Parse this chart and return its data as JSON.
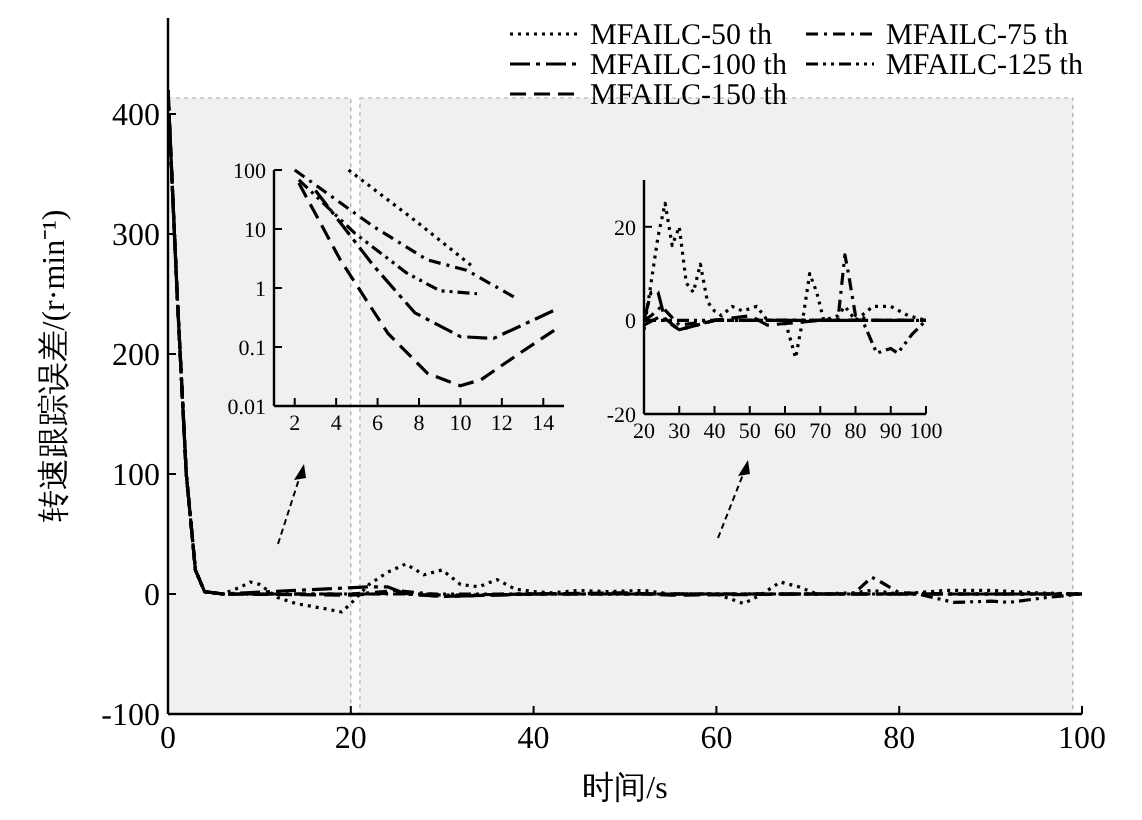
{
  "chart_data": [
    {
      "type": "line",
      "xlabel": "时间/s",
      "ylabel": "转速跟踪误差/(r·min⁻¹)",
      "xlim": [
        0,
        100
      ],
      "ylim": [
        -100,
        480
      ],
      "xticks": [
        0,
        20,
        40,
        60,
        80,
        100
      ],
      "yticks": [
        -100,
        0,
        100,
        200,
        300,
        400
      ],
      "legend": "top right",
      "grid": false,
      "bands": [
        {
          "axis": "x",
          "from": 0,
          "to": 20,
          "color": "#f0f0f0"
        },
        {
          "axis": "x",
          "from": 21,
          "to": 99,
          "color": "#f0f0f0"
        }
      ],
      "series": [
        {
          "name": "MFAILC-50 th",
          "color": "#000000",
          "line_style": "dotted",
          "x": [
            0,
            1,
            2,
            3,
            4,
            6,
            8,
            9,
            10,
            12,
            14,
            17,
            19,
            20,
            22,
            24,
            26,
            28,
            30,
            32,
            34,
            36,
            38,
            40,
            42,
            45,
            48,
            52,
            55,
            60,
            63,
            65,
            67,
            69,
            71,
            75,
            77,
            80,
            85,
            90,
            95,
            100
          ],
          "values": [
            420,
            250,
            100,
            20,
            2,
            0,
            6,
            10,
            8,
            -3,
            -8,
            -12,
            -15,
            -8,
            8,
            18,
            25,
            16,
            20,
            8,
            6,
            12,
            4,
            2,
            1,
            3,
            2,
            3,
            0,
            0,
            -8,
            0,
            10,
            6,
            0,
            1,
            3,
            0,
            3,
            3,
            1,
            0
          ]
        },
        {
          "name": "MFAILC-75 th",
          "color": "#000000",
          "line_style": "dashdot",
          "x": [
            0,
            1,
            2,
            3,
            4,
            6,
            20,
            22,
            25,
            30,
            40,
            60,
            75,
            77,
            78,
            80,
            85,
            100
          ],
          "values": [
            420,
            250,
            100,
            20,
            2,
            0,
            0,
            1,
            3,
            -1,
            0,
            0,
            0,
            14,
            10,
            1,
            0,
            0
          ]
        },
        {
          "name": "MFAILC-100 th",
          "color": "#000000",
          "line_style": "longdashdot",
          "x": [
            0,
            1,
            2,
            3,
            4,
            6,
            22,
            24,
            26,
            30,
            35,
            40,
            60,
            100
          ],
          "values": [
            420,
            250,
            100,
            20,
            2,
            0,
            6,
            6,
            0,
            -2,
            -1,
            0,
            0,
            0
          ]
        },
        {
          "name": "MFAILC-125 th",
          "color": "#000000",
          "line_style": "dashdotdot",
          "x": [
            0,
            1,
            2,
            3,
            4,
            6,
            20,
            40,
            70,
            82,
            86,
            90,
            92,
            96,
            100
          ],
          "values": [
            420,
            250,
            100,
            20,
            2,
            0,
            0,
            0,
            0,
            0,
            -7,
            -6,
            -7,
            -3,
            0
          ]
        },
        {
          "name": "MFAILC-150 th",
          "color": "#000000",
          "line_style": "dashed",
          "x": [
            0,
            1,
            2,
            3,
            4,
            6,
            20,
            25,
            30,
            40,
            50,
            55,
            70,
            100
          ],
          "values": [
            420,
            250,
            100,
            20,
            2,
            0,
            -1,
            1,
            -2,
            0,
            1,
            -1,
            0,
            0
          ]
        }
      ]
    },
    {
      "type": "line",
      "log": "y",
      "xlim": [
        1,
        15
      ],
      "ylim": [
        0.01,
        100
      ],
      "xticks": [
        2,
        4,
        6,
        8,
        10,
        12,
        14
      ],
      "yticks": [
        0.01,
        0.1,
        1,
        10,
        100
      ],
      "grid": false,
      "series": [
        {
          "color": "#000000",
          "line_style": "dotted",
          "x": [
            4.6,
            7.8,
            10.6
          ],
          "values": [
            100,
            14,
            2.3
          ]
        },
        {
          "color": "#000000",
          "line_style": "dashdot",
          "x": [
            2,
            5.8,
            8.4,
            10.3,
            12.6
          ],
          "values": [
            100,
            11,
            3,
            2,
            0.7
          ]
        },
        {
          "color": "#000000",
          "line_style": "longdashdot",
          "x": [
            3,
            5.8,
            7.8,
            10,
            11.6,
            14.6
          ],
          "values": [
            45,
            2.4,
            0.38,
            0.15,
            0.14,
            0.43
          ]
        },
        {
          "color": "#000000",
          "line_style": "dashdotdot",
          "x": [
            2.2,
            4.9,
            7.4,
            9,
            10.8
          ],
          "values": [
            68,
            8.5,
            1.8,
            0.9,
            0.8
          ]
        },
        {
          "color": "#000000",
          "line_style": "dashed",
          "x": [
            2.2,
            4.2,
            6.5,
            8.4,
            10,
            11,
            12.9,
            14.6
          ],
          "values": [
            60,
            3,
            0.17,
            0.036,
            0.022,
            0.028,
            0.08,
            0.2
          ]
        }
      ]
    },
    {
      "type": "line",
      "xlim": [
        20,
        100
      ],
      "ylim": [
        -20,
        30
      ],
      "xticks": [
        20,
        30,
        40,
        50,
        60,
        70,
        80,
        90,
        100
      ],
      "yticks": [
        -20,
        0,
        20
      ],
      "grid": false,
      "series": [
        {
          "color": "#000000",
          "line_style": "dotted",
          "x": [
            20,
            22,
            24,
            26,
            28,
            30,
            32,
            34,
            36,
            38,
            40,
            42,
            45,
            48,
            52,
            55,
            60,
            63,
            65,
            67,
            69,
            71,
            75,
            77,
            80,
            85,
            90,
            95,
            100
          ],
          "values": [
            -2,
            8,
            18,
            25,
            16,
            20,
            8,
            6,
            12,
            4,
            2,
            1,
            3,
            2,
            3,
            0,
            0,
            -8,
            0,
            10,
            6,
            0,
            1,
            3,
            0,
            3,
            3,
            1,
            0
          ]
        },
        {
          "color": "#000000",
          "line_style": "dashdot",
          "x": [
            20,
            22,
            25,
            30,
            40,
            60,
            75,
            77,
            78,
            80,
            85,
            100
          ],
          "values": [
            0,
            1,
            3,
            -1,
            0,
            0,
            0,
            14,
            10,
            1,
            0,
            0
          ]
        },
        {
          "color": "#000000",
          "line_style": "longdashdot",
          "x": [
            20,
            22,
            24,
            26,
            30,
            35,
            40,
            60,
            100
          ],
          "values": [
            0,
            6,
            6,
            0,
            -2,
            -1,
            0,
            0,
            0
          ]
        },
        {
          "color": "#000000",
          "line_style": "dashdotdot",
          "x": [
            20,
            40,
            70,
            82,
            86,
            90,
            92,
            96,
            100
          ],
          "values": [
            0,
            0,
            0,
            0,
            -7,
            -6,
            -7,
            -3,
            0
          ]
        },
        {
          "color": "#000000",
          "line_style": "dashed",
          "x": [
            20,
            25,
            30,
            40,
            50,
            55,
            70,
            100
          ],
          "values": [
            -1,
            1,
            -2,
            0,
            1,
            -1,
            0,
            0
          ]
        }
      ]
    }
  ]
}
